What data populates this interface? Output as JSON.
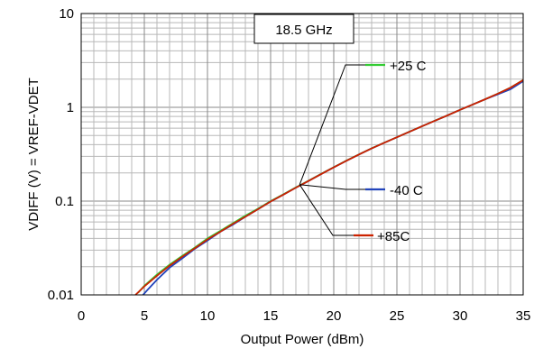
{
  "chart_data": {
    "type": "line",
    "title": "18.5 GHz",
    "xlabel": "Output Power (dBm)",
    "ylabel": "VDIFF (V) = VREF-VDET",
    "xlim": [
      0,
      35
    ],
    "ylim": [
      0.01,
      10
    ],
    "yscale": "log",
    "xticks": [
      "0",
      "5",
      "10",
      "15",
      "20",
      "25",
      "30",
      "35"
    ],
    "yticks": [
      "0.01",
      "0.1",
      "1",
      "10"
    ],
    "grid": true,
    "series": [
      {
        "name": "+25 C",
        "color": "#33cc33",
        "x": [
          4.5,
          5,
          6,
          7,
          8,
          9,
          10,
          11,
          12,
          13,
          14,
          15,
          16,
          17,
          18,
          19,
          20,
          21,
          22,
          23,
          24,
          25,
          26,
          27,
          28,
          29,
          30,
          31,
          32,
          33,
          34,
          35
        ],
        "y": [
          0.0105,
          0.0125,
          0.0165,
          0.021,
          0.026,
          0.032,
          0.04,
          0.048,
          0.058,
          0.07,
          0.083,
          0.1,
          0.118,
          0.14,
          0.165,
          0.195,
          0.23,
          0.27,
          0.315,
          0.365,
          0.42,
          0.48,
          0.55,
          0.63,
          0.72,
          0.82,
          0.94,
          1.07,
          1.22,
          1.4,
          1.62,
          1.95
        ]
      },
      {
        "name": "-40 C",
        "color": "#2244bb",
        "x": [
          4.9,
          5.3,
          6,
          7,
          8,
          9,
          10,
          11,
          12,
          13,
          14,
          15,
          16,
          17,
          18,
          19,
          20,
          21,
          22,
          23,
          24,
          25,
          26,
          27,
          28,
          29,
          30,
          31,
          32,
          33,
          34,
          35
        ],
        "y": [
          0.01,
          0.0115,
          0.0145,
          0.0195,
          0.0245,
          0.031,
          0.038,
          0.047,
          0.056,
          0.068,
          0.082,
          0.099,
          0.117,
          0.139,
          0.164,
          0.194,
          0.229,
          0.269,
          0.314,
          0.364,
          0.419,
          0.479,
          0.549,
          0.629,
          0.719,
          0.82,
          0.94,
          1.07,
          1.22,
          1.38,
          1.56,
          1.9
        ]
      },
      {
        "name": "+85C",
        "color": "#cc2200",
        "x": [
          4.3,
          5,
          6,
          7,
          8,
          9,
          10,
          11,
          12,
          13,
          14,
          15,
          16,
          17,
          18,
          19,
          20,
          21,
          22,
          23,
          24,
          25,
          26,
          27,
          28,
          29,
          30,
          31,
          32,
          33,
          34,
          35
        ],
        "y": [
          0.01,
          0.0123,
          0.016,
          0.0205,
          0.0255,
          0.0315,
          0.039,
          0.047,
          0.057,
          0.068,
          0.082,
          0.099,
          0.117,
          0.139,
          0.164,
          0.194,
          0.229,
          0.269,
          0.314,
          0.364,
          0.419,
          0.479,
          0.549,
          0.629,
          0.719,
          0.82,
          0.94,
          1.07,
          1.22,
          1.4,
          1.62,
          1.95
        ]
      }
    ],
    "annotations": [
      {
        "series": "+25 C",
        "label": "+25 C",
        "point": [
          17.3,
          0.15
        ]
      },
      {
        "series": "-40 C",
        "label": "-40 C",
        "point": [
          17.3,
          0.15
        ]
      },
      {
        "series": "+85C",
        "label": "+85C",
        "point": [
          17.3,
          0.15
        ]
      }
    ]
  }
}
